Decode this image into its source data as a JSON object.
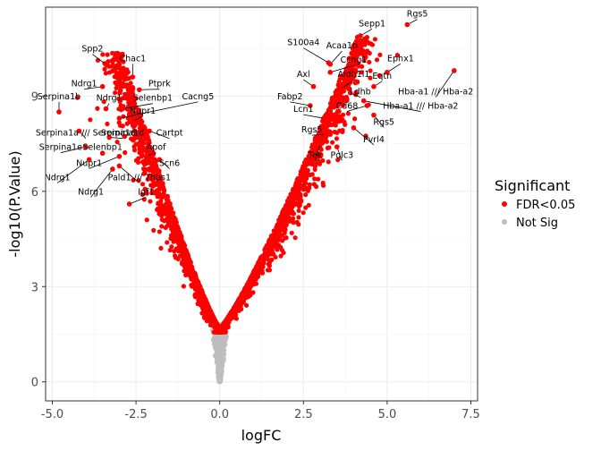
{
  "chart_data": {
    "type": "scatter",
    "title": "",
    "xlabel": "logFC",
    "ylabel": "-log10(P.Value)",
    "xlim": [
      -5.2,
      7.7
    ],
    "ylim": [
      -0.6,
      11.8
    ],
    "x_ticks": [
      -5.0,
      -2.5,
      0.0,
      2.5,
      5.0,
      7.5
    ],
    "x_tick_labels": [
      "-5.0",
      "-2.5",
      "0.0",
      "2.5",
      "5.0",
      "7.5"
    ],
    "y_ticks": [
      0,
      3,
      6,
      9
    ],
    "y_tick_labels": [
      "0",
      "3",
      "6",
      "9"
    ],
    "grid": true,
    "legend": {
      "title": "Significant",
      "placement": "right",
      "entries": [
        {
          "label": "FDR<0.05",
          "color": "#ff0000"
        },
        {
          "label": "Not Sig",
          "color": "#bebebe"
        }
      ]
    },
    "colors": {
      "sig": "#ff0000",
      "nonsig": "#bebebe",
      "panel": "#ffffff",
      "grid": "#ebebeb",
      "border": "#333333"
    },
    "distribution": {
      "left_arm": {
        "x_at_threshold": -0.05,
        "x_at_top": -3.0,
        "top_y": 10.5
      },
      "right_arm": {
        "x_at_threshold": 0.05,
        "x_at_top": 4.2,
        "top_y": 11.0
      },
      "fdr_threshold_y": 1.7,
      "n_sig_left": 1500,
      "n_sig_right": 1900,
      "n_nonsig": 700
    },
    "labeled_points": [
      {
        "gene": "Rgs5",
        "x": 5.6,
        "y": 11.25,
        "label": "Rgs5",
        "lx": 5.9,
        "ly": 11.5
      },
      {
        "gene": "Sepp1",
        "x": 4.2,
        "y": 10.9,
        "label": "Sepp1",
        "lx": 4.55,
        "ly": 11.2
      },
      {
        "gene": "S100a4",
        "x": 3.25,
        "y": 10.05,
        "label": "S100a4",
        "lx": 2.5,
        "ly": 10.6
      },
      {
        "gene": "Acaa1b",
        "x": 3.3,
        "y": 10.0,
        "label": "Acaa1b",
        "lx": 3.65,
        "ly": 10.5
      },
      {
        "gene": "Ccng1",
        "x": 3.3,
        "y": 9.75,
        "label": "Ccng1",
        "lx": 4.0,
        "ly": 10.05
      },
      {
        "gene": "Ephx1",
        "x": 5.0,
        "y": 9.75,
        "label": "Ephx1",
        "lx": 5.4,
        "ly": 10.1
      },
      {
        "gene": "Axl",
        "x": 2.8,
        "y": 9.3,
        "label": "Axl",
        "lx": 2.5,
        "ly": 9.6
      },
      {
        "gene": "Aldh1l1",
        "x": 3.6,
        "y": 9.2,
        "label": "Aldh1l1",
        "lx": 4.0,
        "ly": 9.6
      },
      {
        "gene": "Eqtn",
        "x": 4.6,
        "y": 9.3,
        "label": "Eqtn",
        "lx": 4.85,
        "ly": 9.55
      },
      {
        "gene": "Hba-a2",
        "x": 7.0,
        "y": 9.8,
        "label": "Hba-a1 /// Hba-a2",
        "lx": 6.45,
        "ly": 9.05
      },
      {
        "gene": "Ldhb",
        "x": 3.9,
        "y": 9.1,
        "label": "Ldhb",
        "lx": 4.2,
        "ly": 9.05
      },
      {
        "gene": "Fabp2",
        "x": 2.7,
        "y": 8.7,
        "label": "Fabp2",
        "lx": 2.1,
        "ly": 8.9
      },
      {
        "gene": "Hba-a1",
        "x": 4.3,
        "y": 8.85,
        "label": "Hba-a1 /// Hba-a2",
        "lx": 6.0,
        "ly": 8.6
      },
      {
        "gene": "Cd68",
        "x": 4.4,
        "y": 8.7,
        "label": "Cd68",
        "lx": 3.8,
        "ly": 8.6
      },
      {
        "gene": "Lcn1",
        "x": 3.1,
        "y": 8.3,
        "label": "Lcn1",
        "lx": 2.5,
        "ly": 8.5
      },
      {
        "gene": "Rgs5b",
        "x": 4.6,
        "y": 8.4,
        "label": "Rgs5",
        "lx": 4.9,
        "ly": 8.1
      },
      {
        "gene": "Rgs5c",
        "x": 3.2,
        "y": 7.8,
        "label": "Rgs5",
        "lx": 2.75,
        "ly": 7.85
      },
      {
        "gene": "Pvrl4",
        "x": 4.0,
        "y": 8.0,
        "label": "Pvrl4",
        "lx": 4.6,
        "ly": 7.55
      },
      {
        "gene": "Tek",
        "x": 3.0,
        "y": 7.5,
        "label": "Tek",
        "lx": 2.85,
        "ly": 7.05
      },
      {
        "gene": "Pqlc3",
        "x": 3.5,
        "y": 7.4,
        "label": "Pqlc3",
        "lx": 3.65,
        "ly": 7.05
      },
      {
        "gene": "Spp2",
        "x": -3.4,
        "y": 10.0,
        "label": "Spp2",
        "lx": -3.8,
        "ly": 10.4
      },
      {
        "gene": "Chac1",
        "x": -2.6,
        "y": 9.6,
        "label": "Chac1",
        "lx": -2.6,
        "ly": 10.1
      },
      {
        "gene": "Ndrg1a",
        "x": -3.5,
        "y": 9.3,
        "label": "Ndrg1",
        "lx": -4.05,
        "ly": 9.3
      },
      {
        "gene": "Ptprk",
        "x": -2.4,
        "y": 9.2,
        "label": "Ptprk",
        "lx": -1.8,
        "ly": 9.3
      },
      {
        "gene": "Serpina1b",
        "x": -4.8,
        "y": 8.5,
        "label": "Serpina1b",
        "lx": -4.8,
        "ly": 8.9
      },
      {
        "gene": "Ndrg1b",
        "x": -3.4,
        "y": 8.6,
        "label": "Ndrg1",
        "lx": -3.3,
        "ly": 8.85
      },
      {
        "gene": "Selenbp1a",
        "x": -2.9,
        "y": 8.6,
        "label": "Selenbp1",
        "lx": -2.0,
        "ly": 8.85
      },
      {
        "gene": "Cacng5",
        "x": -3.0,
        "y": 8.3,
        "label": "Cacng5",
        "lx": -0.65,
        "ly": 8.9
      },
      {
        "gene": "Nupr1a",
        "x": -2.6,
        "y": 8.2,
        "label": "Nupr1",
        "lx": -2.3,
        "ly": 8.45
      },
      {
        "gene": "Serpina1a",
        "x": -4.2,
        "y": 7.9,
        "label": "Serpina1a /// Serpina1d",
        "lx": -4.0,
        "ly": 7.75
      },
      {
        "gene": "Cartpt",
        "x": -2.1,
        "y": 7.9,
        "label": "Cartpt",
        "lx": -1.5,
        "ly": 7.75
      },
      {
        "gene": "Serpina1d",
        "x": -3.3,
        "y": 7.7,
        "label": "Serpina1d",
        "lx": -2.9,
        "ly": 7.75
      },
      {
        "gene": "Serpina1e",
        "x": -4.0,
        "y": 7.4,
        "label": "Serpina1e",
        "lx": -4.75,
        "ly": 7.3
      },
      {
        "gene": "Selenbp1b",
        "x": -3.5,
        "y": 7.2,
        "label": "Selenbp1",
        "lx": -3.5,
        "ly": 7.3
      },
      {
        "gene": "Apof",
        "x": -2.2,
        "y": 7.1,
        "label": "Apof",
        "lx": -1.9,
        "ly": 7.3
      },
      {
        "gene": "Nupr1b",
        "x": -3.0,
        "y": 7.1,
        "label": "Nupr1",
        "lx": -3.9,
        "ly": 6.8
      },
      {
        "gene": "Scn6",
        "x": -1.8,
        "y": 7.0,
        "label": "Scn6",
        "lx": -1.5,
        "ly": 6.8
      },
      {
        "gene": "Ndrg1c",
        "x": -3.9,
        "y": 7.0,
        "label": "Ndrg1",
        "lx": -4.85,
        "ly": 6.35
      },
      {
        "gene": "Pald1",
        "x": -3.0,
        "y": 6.8,
        "label": "Pald1 /// Thbs1",
        "lx": -2.4,
        "ly": 6.35
      },
      {
        "gene": "Ndrg1d",
        "x": -3.2,
        "y": 6.7,
        "label": "Ndrg1",
        "lx": -3.85,
        "ly": 5.9
      },
      {
        "gene": "Igf1",
        "x": -2.7,
        "y": 5.6,
        "label": "Igf1",
        "lx": -2.2,
        "ly": 5.9
      }
    ]
  }
}
